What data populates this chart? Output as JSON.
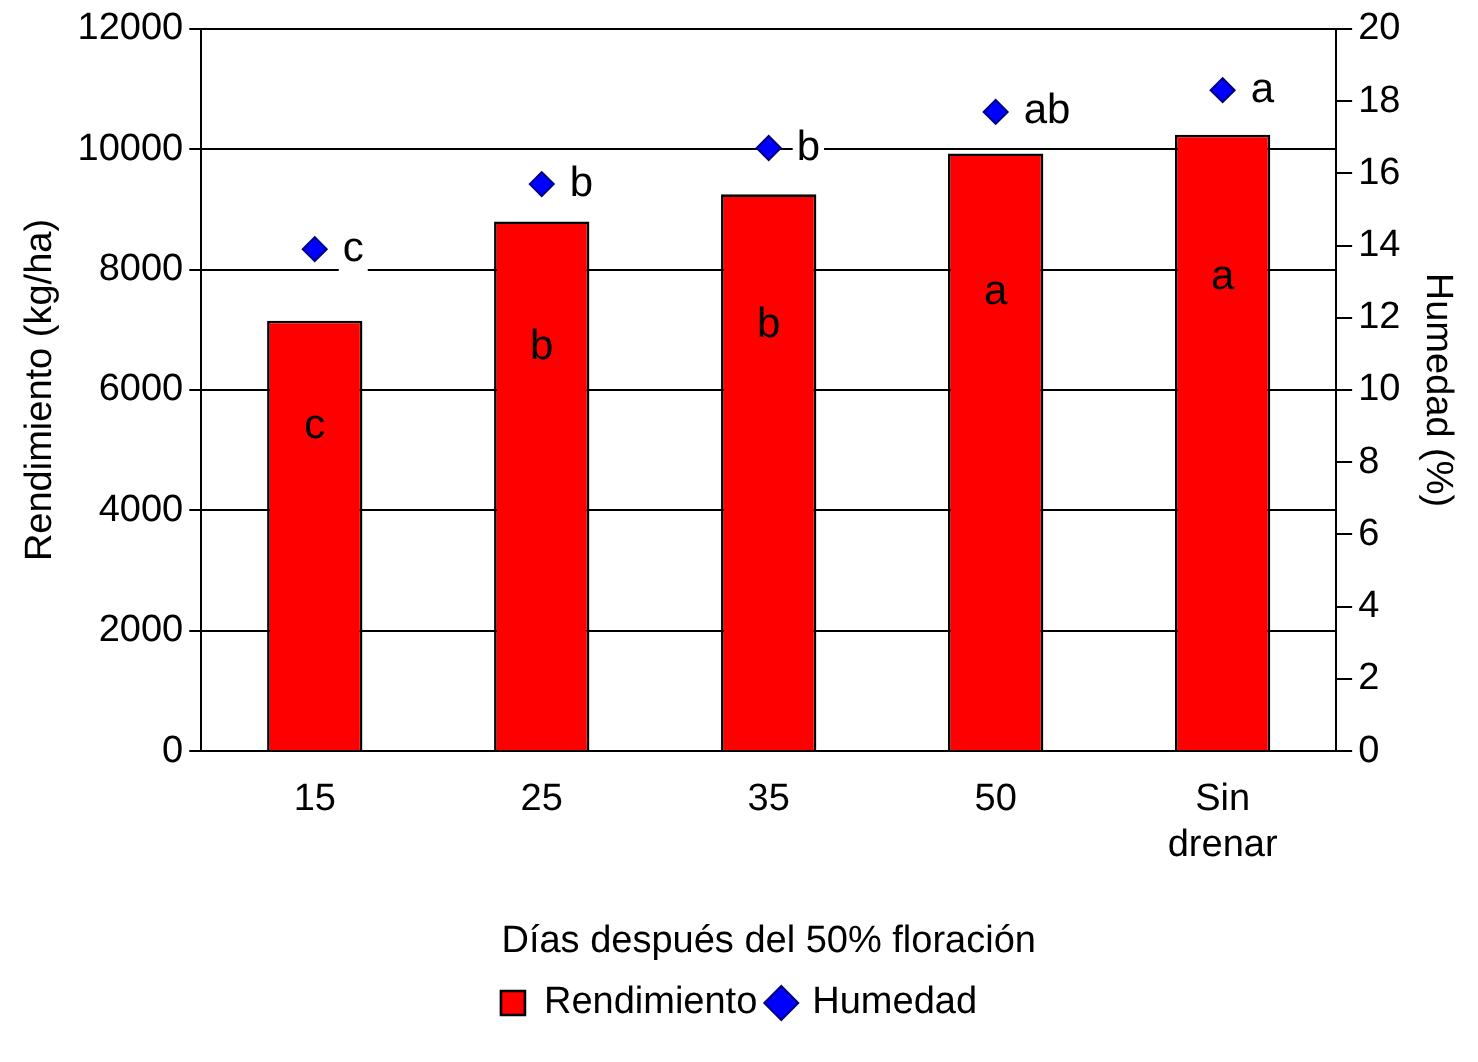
{
  "chart_data": {
    "type": "bar",
    "xlabel": "Días después del 50% floración",
    "ylabel": "Rendimiento (kg/ha)",
    "y2label": "Humedad (%)",
    "categories": [
      "15",
      "25",
      "35",
      "50",
      "Sin drenar"
    ],
    "series": [
      {
        "name": "Rendimiento",
        "color": "#ff0000",
        "values": [
          7150,
          8800,
          9250,
          9930,
          10240
        ],
        "value_labels": [
          "c",
          "b",
          "b",
          "a",
          "a"
        ]
      },
      {
        "name": "Humedad",
        "type": "scatter",
        "axis": "y2",
        "color": "#0000ff",
        "values": [
          13.9,
          15.7,
          16.7,
          17.7,
          18.3
        ],
        "value_labels": [
          "c",
          "b",
          "b",
          "ab",
          "a"
        ]
      }
    ],
    "ylim": [
      0,
      12000
    ],
    "yticks": [
      0,
      2000,
      4000,
      6000,
      8000,
      10000,
      12000
    ],
    "y2lim": [
      0,
      20
    ],
    "y2ticks": [
      0,
      2,
      4,
      6,
      8,
      10,
      12,
      14,
      16,
      18,
      20
    ],
    "grid": "y",
    "legend": "bottom",
    "marker": "diamond"
  }
}
